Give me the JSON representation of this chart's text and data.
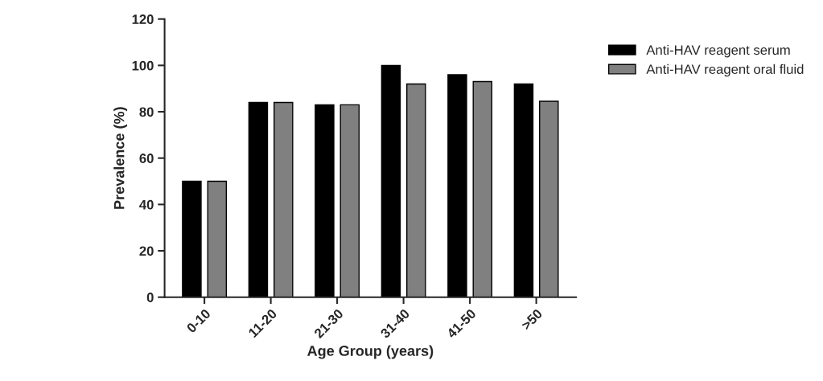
{
  "chart_data": {
    "type": "bar",
    "xlabel": "Age Group (years)",
    "ylabel": "Prevalence (%)",
    "categories": [
      "0-10",
      "11-20",
      "21-30",
      "31-40",
      "41-50",
      ">50"
    ],
    "series": [
      {
        "name": "Anti-HAV reagent serum",
        "color": "#000000",
        "values": [
          50,
          84,
          83,
          100,
          96,
          92
        ]
      },
      {
        "name": "Anti-HAV reagent oral fluid",
        "color": "#808080",
        "values": [
          50,
          84,
          83,
          92,
          93,
          84.5
        ]
      }
    ],
    "ylim": [
      0,
      120
    ],
    "yticks": [
      0,
      20,
      40,
      60,
      80,
      100,
      120
    ],
    "grid": false,
    "legend": "right"
  }
}
